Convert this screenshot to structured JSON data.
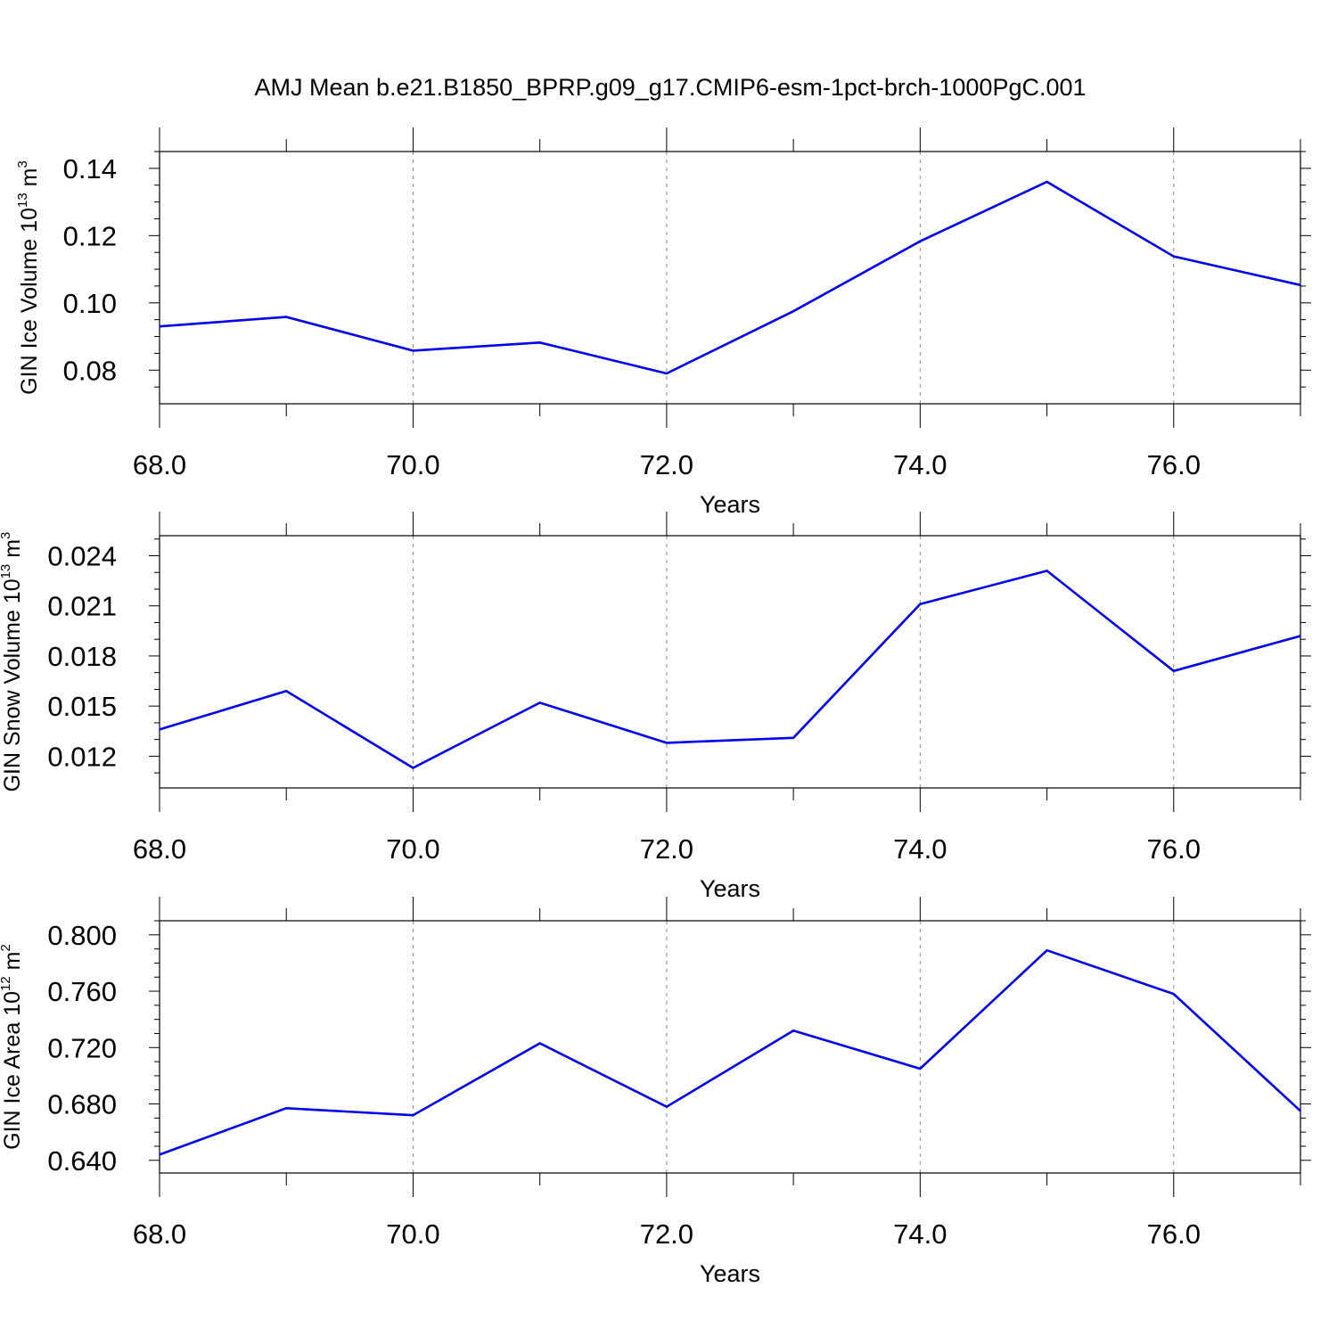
{
  "figure": {
    "title": "AMJ Mean b.e21.B1850_BPRP.g09_g17.CMIP6-esm-1pct-brch-1000PgC.001"
  },
  "chart_data": [
    {
      "type": "line",
      "title": "",
      "xlabel": "Years",
      "ylabel": {
        "main": "GIN Ice Volume 10",
        "sup": "13",
        "rest": " m",
        "sup2": "3"
      },
      "xlim": [
        68,
        77
      ],
      "ylim": [
        0.07,
        0.145
      ],
      "x_ticks": [
        68,
        70,
        72,
        74,
        76
      ],
      "x_tick_labels": [
        "68.0",
        "70.0",
        "72.0",
        "74.0",
        "76.0"
      ],
      "y_ticks": [
        0.08,
        0.1,
        0.12,
        0.14
      ],
      "y_tick_labels": [
        "0.08",
        "0.10",
        "0.12",
        "0.14"
      ],
      "y_minor_step": 0.005,
      "grid": "vertical dashed at major x ticks",
      "line_color": "#0000ee",
      "x": [
        68,
        69,
        70,
        71,
        72,
        73,
        74,
        75,
        76,
        77
      ],
      "values": [
        0.093,
        0.0958,
        0.0858,
        0.0882,
        0.079,
        0.0975,
        0.1183,
        0.136,
        0.1138,
        0.1053
      ]
    },
    {
      "type": "line",
      "title": "",
      "xlabel": "Years",
      "ylabel": {
        "main": "GIN Snow Volume 10",
        "sup": "13",
        "rest": " m",
        "sup2": "3"
      },
      "xlim": [
        68,
        77
      ],
      "ylim": [
        0.0101,
        0.0252
      ],
      "x_ticks": [
        68,
        70,
        72,
        74,
        76
      ],
      "x_tick_labels": [
        "68.0",
        "70.0",
        "72.0",
        "74.0",
        "76.0"
      ],
      "y_ticks": [
        0.012,
        0.015,
        0.018,
        0.021,
        0.024
      ],
      "y_tick_labels": [
        "0.012",
        "0.015",
        "0.018",
        "0.021",
        "0.024"
      ],
      "y_minor_step": 0.001,
      "grid": "vertical dashed at major x ticks",
      "line_color": "#0000ee",
      "x": [
        68,
        69,
        70,
        71,
        72,
        73,
        74,
        75,
        76,
        77
      ],
      "values": [
        0.0136,
        0.0159,
        0.0113,
        0.0152,
        0.0128,
        0.0131,
        0.0211,
        0.0231,
        0.0171,
        0.0192
      ]
    },
    {
      "type": "line",
      "title": "",
      "xlabel": "Years",
      "ylabel": {
        "main": "GIN Ice Area 10",
        "sup": "12",
        "rest": " m",
        "sup2": "2"
      },
      "xlim": [
        68,
        77
      ],
      "ylim": [
        0.631,
        0.81
      ],
      "x_ticks": [
        68,
        70,
        72,
        74,
        76
      ],
      "x_tick_labels": [
        "68.0",
        "70.0",
        "72.0",
        "74.0",
        "76.0"
      ],
      "y_ticks": [
        0.64,
        0.68,
        0.72,
        0.76,
        0.8
      ],
      "y_tick_labels": [
        "0.640",
        "0.680",
        "0.720",
        "0.760",
        "0.800"
      ],
      "y_minor_step": 0.01,
      "grid": "vertical dashed at major x ticks",
      "line_color": "#0000ee",
      "x": [
        68,
        69,
        70,
        71,
        72,
        73,
        74,
        75,
        76,
        77
      ],
      "values": [
        0.644,
        0.677,
        0.672,
        0.723,
        0.678,
        0.732,
        0.705,
        0.789,
        0.758,
        0.675
      ]
    }
  ]
}
